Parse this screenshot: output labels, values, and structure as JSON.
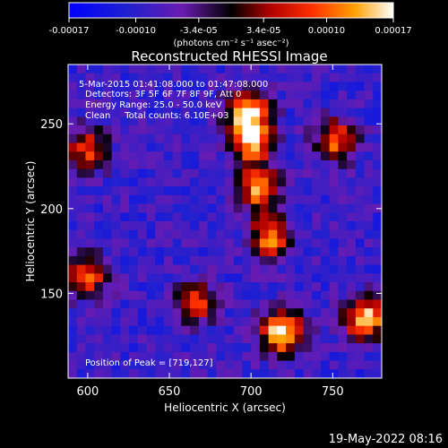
{
  "chart_data": {
    "type": "heatmap",
    "title": "Reconstructed RHESSI Image",
    "xlabel": "Heliocentric X (arcsec)",
    "ylabel": "Heliocentric Y (arcsec)",
    "xlim": [
      588,
      780
    ],
    "ylim": [
      100,
      285
    ],
    "x_ticks": [
      600,
      650,
      700,
      750
    ],
    "y_ticks": [
      150,
      200,
      250
    ],
    "colorbar": {
      "range": [
        -0.00017,
        0.00017
      ],
      "tick_values": [
        -0.00017,
        -0.0001,
        -3.4e-05,
        3.4e-05,
        0.0001,
        0.00017
      ],
      "tick_labels": [
        "-0.00017",
        "-0.00010",
        "-3.4e-05",
        "3.4e-05",
        "0.00010",
        "0.00017"
      ],
      "unit_label": "(photons cm⁻² s⁻¹ asec⁻²)"
    },
    "annotations": {
      "time_range": "5-Mar-2015 01:41:08.000 to 01:47:08.000",
      "detectors": "Detectors: 3F 5F 6F 7F 8F 9F, Att 0",
      "energy": "Energy Range: 25.0 - 50.0 keV",
      "clean": "Clean     Total counts: 6.10E+03",
      "peak": "Position of Peak = [719,127]"
    },
    "peak_position": [
      719,
      127
    ],
    "sources": [
      {
        "x": 698,
        "y": 258,
        "value": 0.00014
      },
      {
        "x": 700,
        "y": 240,
        "value": 0.00015
      },
      {
        "x": 705,
        "y": 212,
        "value": 0.00013
      },
      {
        "x": 712,
        "y": 182,
        "value": 0.00012
      },
      {
        "x": 719,
        "y": 127,
        "value": 0.00017
      },
      {
        "x": 770,
        "y": 135,
        "value": 0.00016
      },
      {
        "x": 752,
        "y": 240,
        "value": 0.0001
      },
      {
        "x": 665,
        "y": 145,
        "value": 9e-05
      },
      {
        "x": 600,
        "y": 235,
        "value": 8e-05
      },
      {
        "x": 600,
        "y": 160,
        "value": 9e-05
      }
    ]
  },
  "footer": {
    "timestamp": "19-May-2022 08:16"
  }
}
